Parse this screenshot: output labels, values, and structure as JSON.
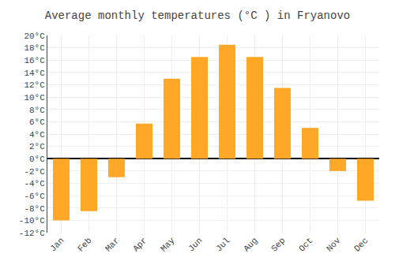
{
  "chart_data": {
    "type": "bar",
    "title": "Average monthly temperatures (°C ) in Fryanovo",
    "categories": [
      "Jan",
      "Feb",
      "Mar",
      "Apr",
      "May",
      "Jun",
      "Jul",
      "Aug",
      "Sep",
      "Oct",
      "Nov",
      "Dec"
    ],
    "values": [
      -10,
      -8.5,
      -3,
      5.7,
      13,
      16.5,
      18.5,
      16.5,
      11.5,
      5,
      -2,
      -6.8
    ],
    "color": "#FFA726",
    "ylim": [
      -12,
      20
    ],
    "yticks": [
      {
        "value": -12,
        "label": "-12°C"
      },
      {
        "value": -10,
        "label": "-10°C"
      },
      {
        "value": -8,
        "label": "-8°C"
      },
      {
        "value": -6,
        "label": "-6°C"
      },
      {
        "value": -4,
        "label": "-4°C"
      },
      {
        "value": -2,
        "label": "-2°C"
      },
      {
        "value": 0,
        "label": "0°C"
      },
      {
        "value": 2,
        "label": "2°C"
      },
      {
        "value": 4,
        "label": "4°C"
      },
      {
        "value": 6,
        "label": "6°C"
      },
      {
        "value": 8,
        "label": "8°C"
      },
      {
        "value": 10,
        "label": "10°C"
      },
      {
        "value": 12,
        "label": "12°C"
      },
      {
        "value": 14,
        "label": "14°C"
      },
      {
        "value": 16,
        "label": "16°C"
      },
      {
        "value": 18,
        "label": "18°C"
      },
      {
        "value": 20,
        "label": "20°C"
      }
    ],
    "grid": true
  }
}
